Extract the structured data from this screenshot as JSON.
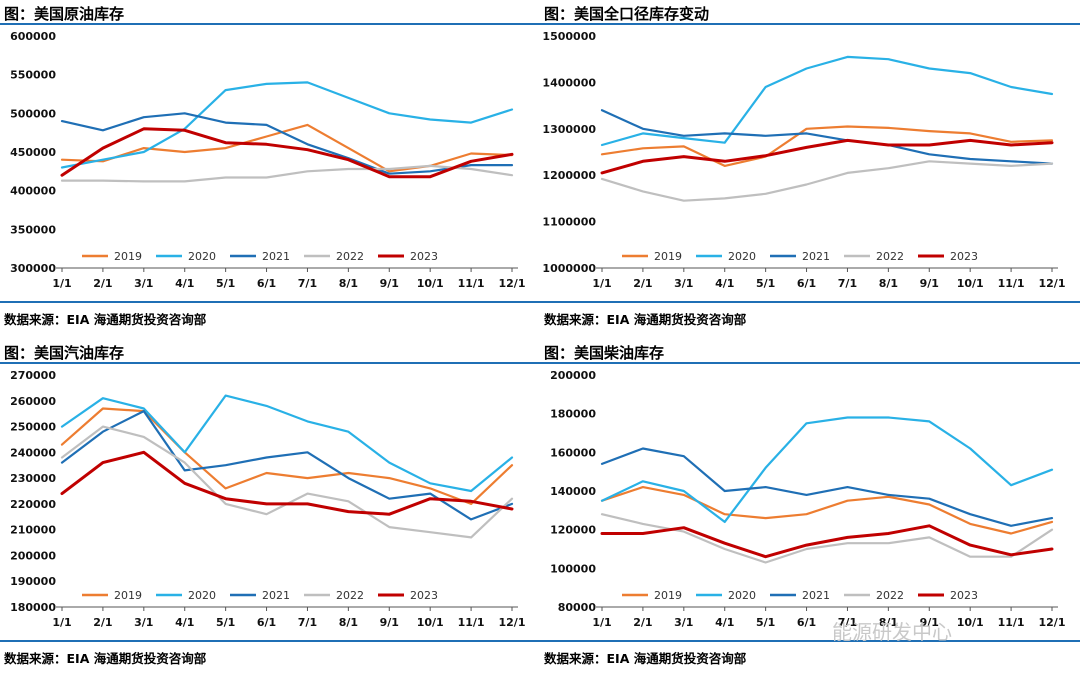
{
  "panels": [
    {
      "title": "图：美国原油库存",
      "source": "数据来源：EIA   海通期货投资咨询部"
    },
    {
      "title": "图：美国全口径库存变动",
      "source": "数据来源：EIA   海通期货投资咨询部"
    },
    {
      "title": "图：美国汽油库存",
      "source": "数据来源：EIA   海通期货投资咨询部"
    },
    {
      "title": "图：美国柴油库存",
      "source": "数据来源：EIA   海通期货投资咨询部"
    }
  ],
  "watermark": "能源研发中心",
  "colors": {
    "2019": "#ed7d31",
    "2020": "#29b1e6",
    "2021": "#1f6fb5",
    "2022": "#bfbfbf",
    "2023": "#c00000",
    "rule": "#1f6fb5"
  },
  "chart_data": [
    {
      "type": "line",
      "title": "图：美国原油库存",
      "categories": [
        "1/1",
        "2/1",
        "3/1",
        "4/1",
        "5/1",
        "6/1",
        "7/1",
        "8/1",
        "9/1",
        "10/1",
        "11/1",
        "12/1"
      ],
      "ylim": [
        300000,
        600000
      ],
      "yticks": [
        "300000",
        "350000",
        "400000",
        "450000",
        "500000",
        "550000",
        "600000"
      ],
      "series": [
        {
          "name": "2019",
          "values": [
            440000,
            438000,
            455000,
            450000,
            455000,
            470000,
            485000,
            455000,
            425000,
            432000,
            448000,
            446000
          ]
        },
        {
          "name": "2020",
          "values": [
            430000,
            440000,
            450000,
            480000,
            530000,
            538000,
            540000,
            520000,
            500000,
            492000,
            488000,
            505000
          ]
        },
        {
          "name": "2021",
          "values": [
            490000,
            478000,
            495000,
            500000,
            488000,
            485000,
            460000,
            442000,
            422000,
            425000,
            433000,
            433000
          ]
        },
        {
          "name": "2022",
          "values": [
            413000,
            413000,
            412000,
            412000,
            417000,
            417000,
            425000,
            428000,
            428000,
            432000,
            428000,
            420000
          ]
        },
        {
          "name": "2023",
          "values": [
            420000,
            455000,
            480000,
            478000,
            462000,
            460000,
            453000,
            440000,
            418000,
            418000,
            438000,
            447000
          ]
        }
      ]
    },
    {
      "type": "line",
      "title": "图：美国全口径库存变动",
      "categories": [
        "1/1",
        "2/1",
        "3/1",
        "4/1",
        "5/1",
        "6/1",
        "7/1",
        "8/1",
        "9/1",
        "10/1",
        "11/1",
        "12/1"
      ],
      "ylim": [
        1000000,
        1500000
      ],
      "yticks": [
        "1000000",
        "1100000",
        "1200000",
        "1300000",
        "1400000",
        "1500000"
      ],
      "series": [
        {
          "name": "2019",
          "values": [
            1245000,
            1258000,
            1262000,
            1220000,
            1240000,
            1300000,
            1305000,
            1302000,
            1295000,
            1290000,
            1272000,
            1275000
          ]
        },
        {
          "name": "2020",
          "values": [
            1265000,
            1290000,
            1280000,
            1270000,
            1390000,
            1430000,
            1455000,
            1450000,
            1430000,
            1420000,
            1390000,
            1375000
          ]
        },
        {
          "name": "2021",
          "values": [
            1340000,
            1300000,
            1285000,
            1290000,
            1285000,
            1290000,
            1275000,
            1265000,
            1245000,
            1235000,
            1230000,
            1225000
          ]
        },
        {
          "name": "2022",
          "values": [
            1192000,
            1165000,
            1145000,
            1150000,
            1160000,
            1180000,
            1205000,
            1215000,
            1230000,
            1225000,
            1220000,
            1225000
          ]
        },
        {
          "name": "2023",
          "values": [
            1205000,
            1230000,
            1240000,
            1230000,
            1242000,
            1260000,
            1275000,
            1265000,
            1265000,
            1275000,
            1265000,
            1270000
          ]
        }
      ]
    },
    {
      "type": "line",
      "title": "图：美国汽油库存",
      "categories": [
        "1/1",
        "2/1",
        "3/1",
        "4/1",
        "5/1",
        "6/1",
        "7/1",
        "8/1",
        "9/1",
        "10/1",
        "11/1",
        "12/1"
      ],
      "ylim": [
        180000,
        270000
      ],
      "yticks": [
        "180000",
        "190000",
        "200000",
        "210000",
        "220000",
        "230000",
        "240000",
        "250000",
        "260000",
        "270000"
      ],
      "series": [
        {
          "name": "2019",
          "values": [
            243000,
            257000,
            256000,
            240000,
            226000,
            232000,
            230000,
            232000,
            230000,
            226000,
            220000,
            235000
          ]
        },
        {
          "name": "2020",
          "values": [
            250000,
            261000,
            257000,
            240000,
            262000,
            258000,
            252000,
            248000,
            236000,
            228000,
            225000,
            238000
          ]
        },
        {
          "name": "2021",
          "values": [
            236000,
            248000,
            256000,
            233000,
            235000,
            238000,
            240000,
            230000,
            222000,
            224000,
            214000,
            220000
          ]
        },
        {
          "name": "2022",
          "values": [
            238000,
            250000,
            246000,
            236000,
            220000,
            216000,
            224000,
            221000,
            211000,
            209000,
            207000,
            222000
          ]
        },
        {
          "name": "2023",
          "values": [
            224000,
            236000,
            240000,
            228000,
            222000,
            220000,
            220000,
            217000,
            216000,
            222000,
            221000,
            218000
          ]
        }
      ]
    },
    {
      "type": "line",
      "title": "图：美国柴油库存",
      "categories": [
        "1/1",
        "2/1",
        "3/1",
        "4/1",
        "5/1",
        "6/1",
        "7/1",
        "8/1",
        "9/1",
        "10/1",
        "11/1",
        "12/1"
      ],
      "ylim": [
        80000,
        200000
      ],
      "yticks": [
        "80000",
        "100000",
        "120000",
        "140000",
        "160000",
        "180000",
        "200000"
      ],
      "series": [
        {
          "name": "2019",
          "values": [
            135000,
            142000,
            138000,
            128000,
            126000,
            128000,
            135000,
            137000,
            133000,
            123000,
            118000,
            124000
          ]
        },
        {
          "name": "2020",
          "values": [
            135000,
            145000,
            140000,
            124000,
            152000,
            175000,
            178000,
            178000,
            176000,
            162000,
            143000,
            151000
          ]
        },
        {
          "name": "2021",
          "values": [
            154000,
            162000,
            158000,
            140000,
            142000,
            138000,
            142000,
            138000,
            136000,
            128000,
            122000,
            126000
          ]
        },
        {
          "name": "2022",
          "values": [
            128000,
            123000,
            119000,
            110000,
            103000,
            110000,
            113000,
            113000,
            116000,
            106000,
            106000,
            120000
          ]
        },
        {
          "name": "2023",
          "values": [
            118000,
            118000,
            121000,
            113000,
            106000,
            112000,
            116000,
            118000,
            122000,
            112000,
            107000,
            110000
          ]
        }
      ]
    }
  ]
}
